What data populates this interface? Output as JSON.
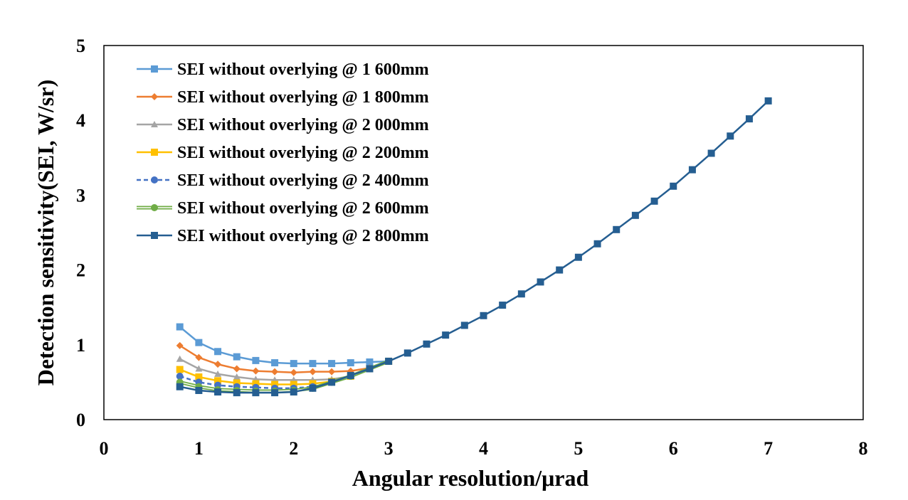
{
  "chart_data": {
    "type": "line",
    "title": "",
    "xlabel": "Angular resolution/μrad",
    "ylabel": "Detection sensitivity(SEI,  W/sr)",
    "xlim": [
      0,
      8
    ],
    "ylim": [
      0,
      5
    ],
    "xticks": [
      0,
      1,
      2,
      3,
      4,
      5,
      6,
      7,
      8
    ],
    "yticks": [
      0,
      1,
      2,
      3,
      4,
      5
    ],
    "grid": false,
    "legend_position": "top-left",
    "series": [
      {
        "name": "SEI without overlying @ 1 600mm",
        "color": "#5B9BD5",
        "marker": "square",
        "dash": "solid",
        "x": [
          0.8,
          1.0,
          1.2,
          1.4,
          1.6,
          1.8,
          2.0,
          2.2,
          2.4,
          2.6,
          2.8,
          3.0
        ],
        "y": [
          1.24,
          1.03,
          0.91,
          0.84,
          0.79,
          0.76,
          0.75,
          0.75,
          0.75,
          0.76,
          0.77,
          0.78
        ]
      },
      {
        "name": "SEI without overlying @ 1 800mm",
        "color": "#ED7D31",
        "marker": "diamond",
        "dash": "solid",
        "x": [
          0.8,
          1.0,
          1.2,
          1.4,
          1.6,
          1.8,
          2.0,
          2.2,
          2.4,
          2.6,
          2.8,
          3.0
        ],
        "y": [
          0.99,
          0.83,
          0.74,
          0.68,
          0.65,
          0.64,
          0.63,
          0.64,
          0.64,
          0.65,
          0.69,
          0.78
        ]
      },
      {
        "name": "SEI without overlying @ 2 000mm",
        "color": "#A5A5A5",
        "marker": "triangle",
        "dash": "solid",
        "x": [
          0.8,
          1.0,
          1.2,
          1.4,
          1.6,
          1.8,
          2.0,
          2.2,
          2.4,
          2.6,
          2.8,
          3.0
        ],
        "y": [
          0.81,
          0.68,
          0.61,
          0.57,
          0.54,
          0.53,
          0.53,
          0.53,
          0.54,
          0.58,
          0.68,
          0.78
        ]
      },
      {
        "name": "SEI without overlying @ 2 200mm",
        "color": "#FFC000",
        "marker": "square",
        "dash": "solid",
        "x": [
          0.8,
          1.0,
          1.2,
          1.4,
          1.6,
          1.8,
          2.0,
          2.2,
          2.4,
          2.6,
          2.8,
          3.0
        ],
        "y": [
          0.67,
          0.57,
          0.52,
          0.49,
          0.48,
          0.47,
          0.47,
          0.48,
          0.51,
          0.58,
          0.68,
          0.78
        ]
      },
      {
        "name": "SEI without overlying @ 2 400mm",
        "color": "#4472C4",
        "marker": "circle",
        "dash": "dashed",
        "x": [
          0.8,
          1.0,
          1.2,
          1.4,
          1.6,
          1.8,
          2.0,
          2.2,
          2.4,
          2.6,
          2.8,
          3.0
        ],
        "y": [
          0.58,
          0.5,
          0.46,
          0.44,
          0.43,
          0.42,
          0.42,
          0.44,
          0.5,
          0.58,
          0.68,
          0.78
        ]
      },
      {
        "name": "SEI without overlying @ 2 600mm",
        "color": "#70AD47",
        "marker": "circle",
        "dash": "double",
        "x": [
          0.8,
          1.0,
          1.2,
          1.4,
          1.6,
          1.8,
          2.0,
          2.2,
          2.4,
          2.6,
          2.8,
          3.0
        ],
        "y": [
          0.5,
          0.44,
          0.4,
          0.39,
          0.38,
          0.38,
          0.39,
          0.42,
          0.5,
          0.58,
          0.68,
          0.78
        ]
      },
      {
        "name": "SEI without overlying @ 2 800mm",
        "color": "#255E91",
        "marker": "square",
        "dash": "solid",
        "x": [
          0.8,
          1.0,
          1.2,
          1.4,
          1.6,
          1.8,
          2.0,
          2.2,
          2.4,
          2.6,
          2.8,
          3.0,
          3.2,
          3.4,
          3.6,
          3.8,
          4.0,
          4.2,
          4.4,
          4.6,
          4.8,
          5.0,
          5.2,
          5.4,
          5.6,
          5.8,
          6.0,
          6.2,
          6.4,
          6.6,
          6.8,
          7.0
        ],
        "y": [
          0.44,
          0.39,
          0.37,
          0.36,
          0.36,
          0.36,
          0.37,
          0.42,
          0.5,
          0.59,
          0.68,
          0.78,
          0.89,
          1.01,
          1.13,
          1.26,
          1.39,
          1.53,
          1.68,
          1.84,
          2.0,
          2.17,
          2.35,
          2.54,
          2.73,
          2.92,
          3.12,
          3.34,
          3.56,
          3.79,
          4.02,
          4.26
        ]
      }
    ]
  }
}
